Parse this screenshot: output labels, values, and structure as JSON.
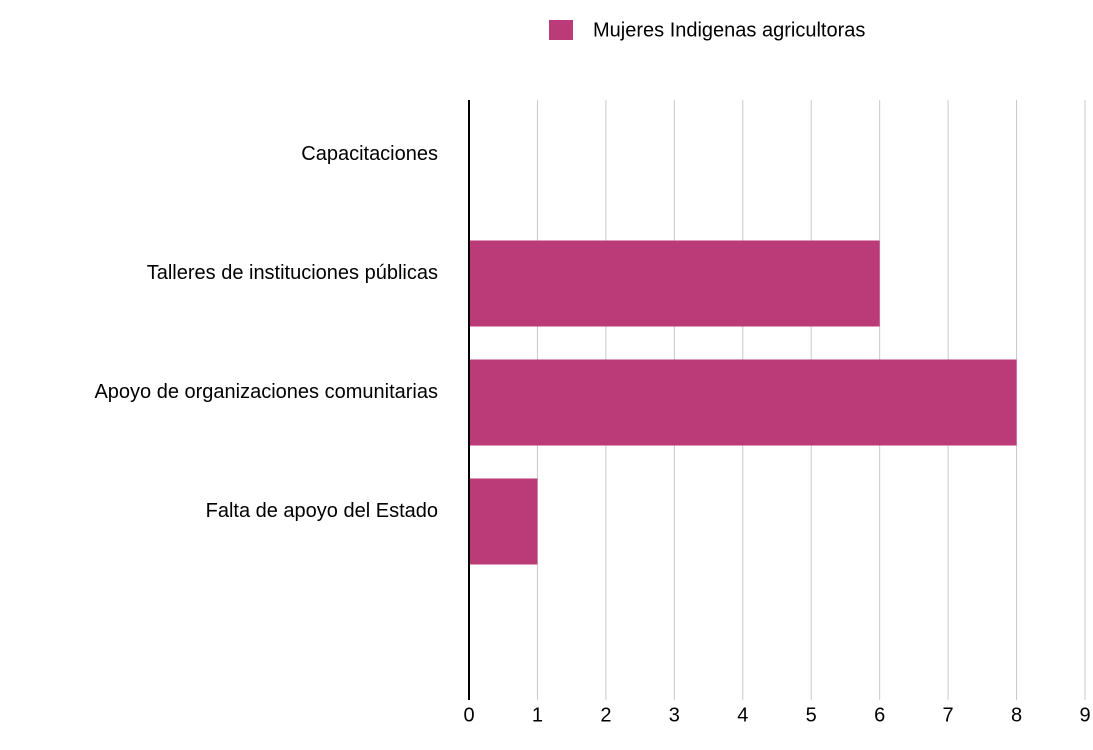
{
  "chart_data": {
    "type": "bar",
    "orientation": "horizontal",
    "categories": [
      "Capacitaciones",
      "Talleres de instituciones públicas",
      "Apoyo de organizaciones comunitarias",
      "Falta de apoyo del Estado",
      null
    ],
    "series": [
      {
        "name": "Mujeres Indigenas agricultoras",
        "color": "#bb3a78",
        "values": [
          0,
          6,
          8,
          1,
          null
        ]
      }
    ],
    "xlim": [
      0,
      9
    ],
    "xticks": [
      0,
      1,
      2,
      3,
      4,
      5,
      6,
      7,
      8,
      9
    ],
    "grid": true,
    "legend": "top"
  }
}
